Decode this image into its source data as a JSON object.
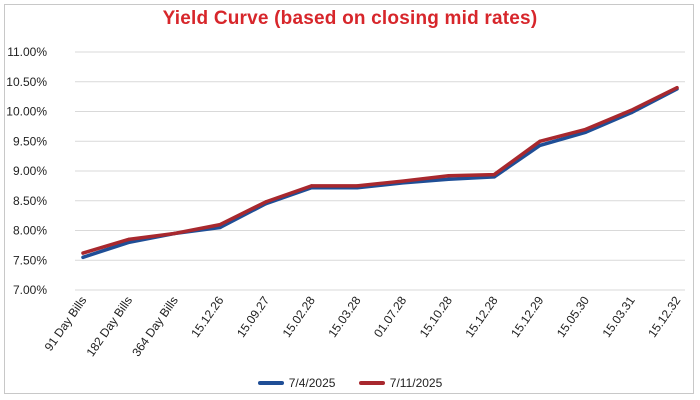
{
  "chart_data": {
    "type": "line",
    "title": "Yield Curve (based on closing mid rates)",
    "xlabel": "",
    "ylabel": "",
    "categories": [
      "91 Day Bills",
      "182 Day Bills",
      "364 Day Bills",
      "15.12.26",
      "15.09.27",
      "15.02.28",
      "15.03.28",
      "01.07.28",
      "15.10.28",
      "15.12.28",
      "15.12.29",
      "15.05.30",
      "15.03.31",
      "15.12.32"
    ],
    "yticks": [
      "7.00%",
      "7.50%",
      "8.00%",
      "8.50%",
      "9.00%",
      "9.50%",
      "10.00%",
      "10.50%",
      "11.00%"
    ],
    "ylim": [
      7.0,
      11.0
    ],
    "grid": true,
    "legend_position": "bottom",
    "series": [
      {
        "name": "7/4/2025",
        "color": "#1f4e96",
        "values": [
          7.55,
          7.8,
          7.95,
          8.05,
          8.45,
          8.72,
          8.72,
          8.8,
          8.86,
          8.9,
          9.43,
          9.65,
          9.98,
          10.38
        ]
      },
      {
        "name": "7/11/2025",
        "color": "#a8282e",
        "values": [
          7.62,
          7.85,
          7.95,
          8.1,
          8.48,
          8.75,
          8.75,
          8.83,
          8.92,
          8.94,
          9.5,
          9.7,
          10.02,
          10.4
        ]
      }
    ]
  }
}
